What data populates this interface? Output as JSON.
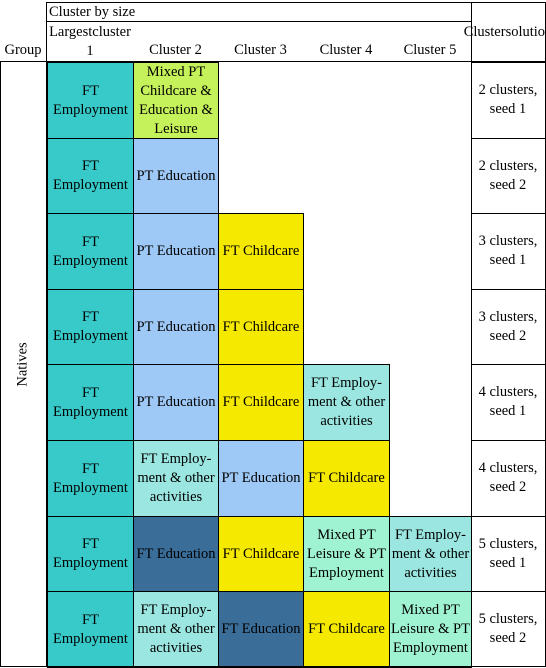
{
  "header": {
    "cluster_by_size": "Cluster by size",
    "group": "Group",
    "columns": [
      [
        "Largest",
        "cluster 1"
      ],
      [
        "Cluster 2"
      ],
      [
        "Cluster 3"
      ],
      [
        "Cluster 4"
      ],
      [
        "Cluster 5"
      ]
    ],
    "solution": [
      "Cluster",
      "solution"
    ]
  },
  "group_label": "Natives",
  "colors": {
    "FT Employment": "#38c9c9",
    "PT Education": "#9ec8f5",
    "FT Childcare": "#f6e900",
    "FT Employment & other activities": "#9be6e0",
    "FT Education": "#3b6d99",
    "Mixed PT Childcare & Education & Leisure": "#c5f25a",
    "Mixed PT Leisure & PT Employment": "#9ff2d2"
  },
  "rows": [
    {
      "solution": [
        "2 clusters,",
        "seed 1"
      ],
      "cells": [
        {
          "key": "FT Employment",
          "lines": [
            "FT",
            "Employment"
          ]
        },
        {
          "key": "Mixed PT Childcare & Education & Leisure",
          "lines": [
            "Mixed PT",
            "Childcare &",
            "Education &",
            "Leisure"
          ]
        }
      ]
    },
    {
      "solution": [
        "2 clusters,",
        "seed 2"
      ],
      "cells": [
        {
          "key": "FT Employment",
          "lines": [
            "FT",
            "Employment"
          ]
        },
        {
          "key": "PT Education",
          "lines": [
            "PT Education"
          ]
        }
      ]
    },
    {
      "solution": [
        "3 clusters,",
        "seed 1"
      ],
      "cells": [
        {
          "key": "FT Employment",
          "lines": [
            "FT",
            "Employment"
          ]
        },
        {
          "key": "PT Education",
          "lines": [
            "PT Education"
          ]
        },
        {
          "key": "FT Childcare",
          "lines": [
            "FT Childcare"
          ]
        }
      ]
    },
    {
      "solution": [
        "3 clusters,",
        "seed 2"
      ],
      "cells": [
        {
          "key": "FT Employment",
          "lines": [
            "FT",
            "Employment"
          ]
        },
        {
          "key": "PT Education",
          "lines": [
            "PT Education"
          ]
        },
        {
          "key": "FT Childcare",
          "lines": [
            "FT Childcare"
          ]
        }
      ]
    },
    {
      "solution": [
        "4 clusters,",
        "seed 1"
      ],
      "cells": [
        {
          "key": "FT Employment",
          "lines": [
            "FT",
            "Employment"
          ]
        },
        {
          "key": "PT Education",
          "lines": [
            "PT Education"
          ]
        },
        {
          "key": "FT Childcare",
          "lines": [
            "FT Childcare"
          ]
        },
        {
          "key": "FT Employment & other activities",
          "lines": [
            "FT Employ-",
            "ment & other",
            "activities"
          ]
        }
      ]
    },
    {
      "solution": [
        "4 clusters,",
        "seed 2"
      ],
      "cells": [
        {
          "key": "FT Employment",
          "lines": [
            "FT",
            "Employment"
          ]
        },
        {
          "key": "FT Employment & other activities",
          "lines": [
            "FT Employ-",
            "ment & other",
            "activities"
          ]
        },
        {
          "key": "PT Education",
          "lines": [
            "PT Education"
          ]
        },
        {
          "key": "FT Childcare",
          "lines": [
            "FT Childcare"
          ]
        }
      ]
    },
    {
      "solution": [
        "5 clusters,",
        "seed 1"
      ],
      "cells": [
        {
          "key": "FT Employment",
          "lines": [
            "FT",
            "Employment"
          ]
        },
        {
          "key": "FT Education",
          "lines": [
            "FT Education"
          ]
        },
        {
          "key": "FT Childcare",
          "lines": [
            "FT Childcare"
          ]
        },
        {
          "key": "Mixed PT Leisure & PT Employment",
          "lines": [
            "Mixed PT",
            "Leisure & PT",
            "Employment"
          ]
        },
        {
          "key": "FT Employment & other activities",
          "lines": [
            "FT Employ-",
            "ment & other",
            "activities"
          ]
        }
      ]
    },
    {
      "solution": [
        "5 clusters,",
        "seed 2"
      ],
      "cells": [
        {
          "key": "FT Employment",
          "lines": [
            "FT",
            "Employment"
          ]
        },
        {
          "key": "FT Employment & other activities",
          "lines": [
            "FT Employ-",
            "ment & other",
            "activities"
          ]
        },
        {
          "key": "FT Education",
          "lines": [
            "FT Education"
          ]
        },
        {
          "key": "FT Childcare",
          "lines": [
            "FT Childcare"
          ]
        },
        {
          "key": "Mixed PT Leisure & PT Employment",
          "lines": [
            "Mixed PT",
            "Leisure & PT",
            "Employment"
          ]
        }
      ]
    }
  ]
}
